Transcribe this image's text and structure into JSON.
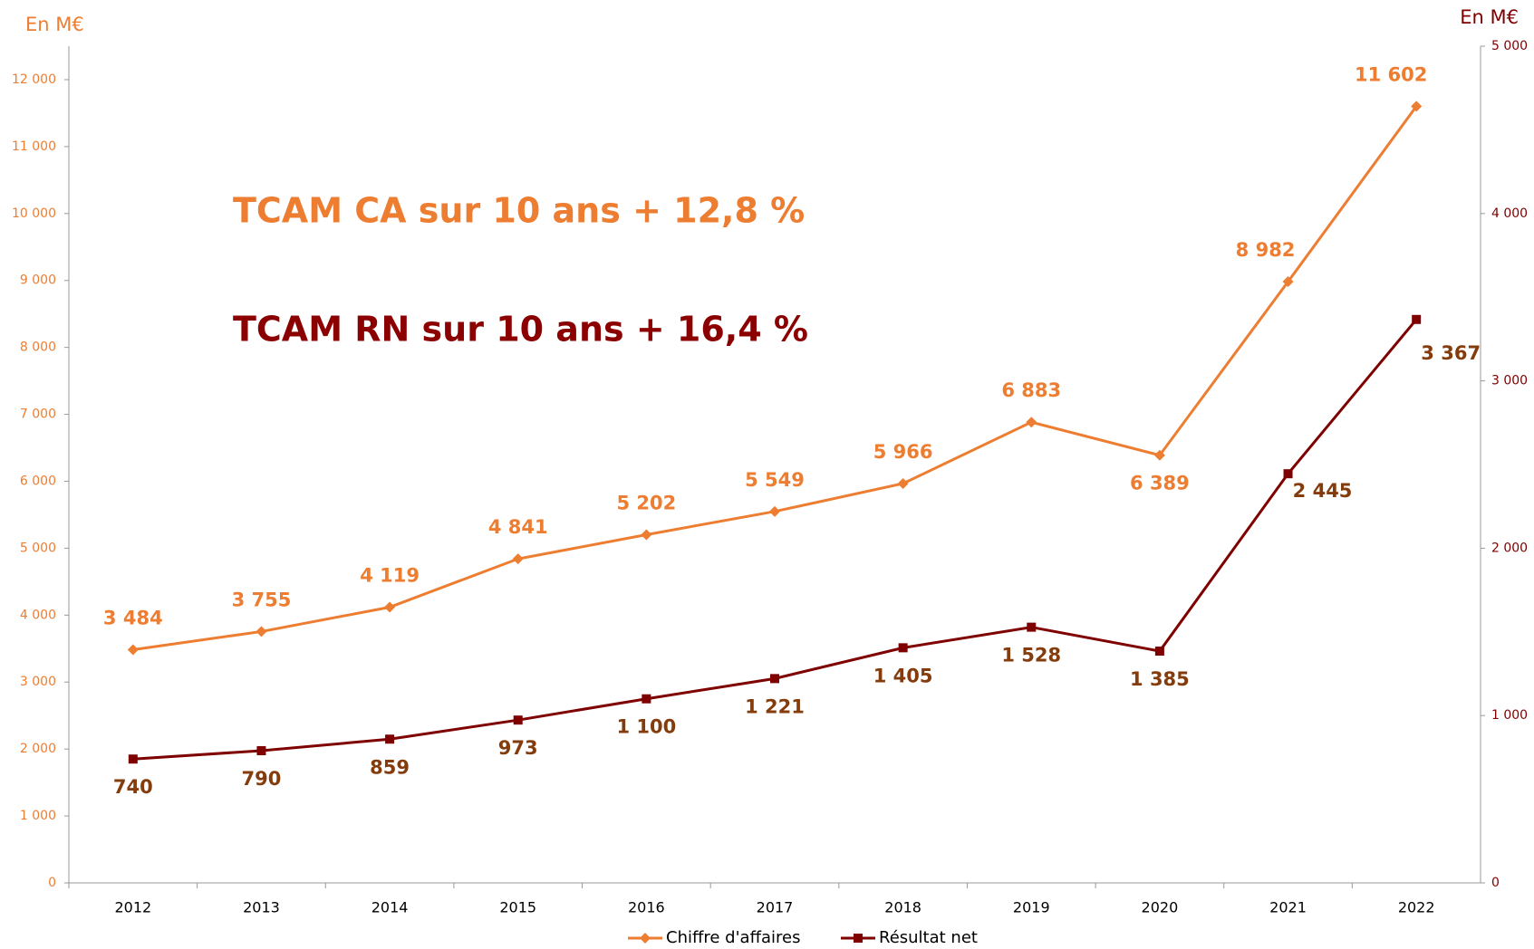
{
  "chart_data": {
    "type": "line",
    "y_label": "En M€",
    "y2_label": "En M€",
    "annotations": [
      "TCAM CA sur 10 ans + 12,8 %",
      "TCAM RN sur 10 ans + 16,4 %"
    ],
    "categories": [
      "2012",
      "2013",
      "2014",
      "2015",
      "2016",
      "2017",
      "2018",
      "2019",
      "2020",
      "2021",
      "2022"
    ],
    "ylim": [
      0,
      12500
    ],
    "yticks": [
      0,
      {
        "value": 1000,
        "label": "1 000"
      },
      {
        "value": 2000,
        "label": "2 000"
      },
      {
        "value": 3000,
        "label": "3 000"
      },
      {
        "value": 4000,
        "label": "4 000"
      },
      {
        "value": 5000,
        "label": "5 000"
      },
      {
        "value": 6000,
        "label": "6 000"
      },
      {
        "value": 7000,
        "label": "7 000"
      },
      {
        "value": 8000,
        "label": "8 000"
      },
      {
        "value": 9000,
        "label": "9 000"
      },
      {
        "value": 10000,
        "label": "10 000"
      },
      {
        "value": 11000,
        "label": "11 000"
      },
      {
        "value": 12000,
        "label": "12 000"
      }
    ],
    "y2lim": [
      0,
      5000
    ],
    "y2ticks": [
      0,
      {
        "value": 1000,
        "label": "1 000"
      },
      {
        "value": 2000,
        "label": "2 000"
      },
      {
        "value": 3000,
        "label": "3 000"
      },
      {
        "value": 4000,
        "label": "4 000"
      },
      {
        "value": 5000,
        "label": "5 000"
      }
    ],
    "legend": "bottom",
    "series": [
      {
        "name": "Chiffre d'affaires",
        "color": "#ed7d31",
        "marker": "diamond",
        "values": [
          3484,
          3755,
          4119,
          4841,
          5202,
          5549,
          5966,
          6883,
          6389,
          8982,
          11602
        ],
        "value_labels": [
          "3 484",
          "3 755",
          "4 119",
          "4 841",
          "5 202",
          "5 549",
          "5 966",
          "6 883",
          "6 389",
          "8 982",
          "11 602"
        ]
      },
      {
        "name": "Résultat net",
        "color": "#7f0000",
        "marker": "square",
        "axis": "y2",
        "values": [
          740,
          790,
          859,
          973,
          1100,
          1221,
          1405,
          1528,
          1385,
          2445,
          3367
        ],
        "value_labels": [
          "740",
          "790",
          "859",
          "973",
          "1 100",
          "1 221",
          "1 405",
          "1 528",
          "1 385",
          "2 445",
          "3 367"
        ]
      }
    ]
  }
}
